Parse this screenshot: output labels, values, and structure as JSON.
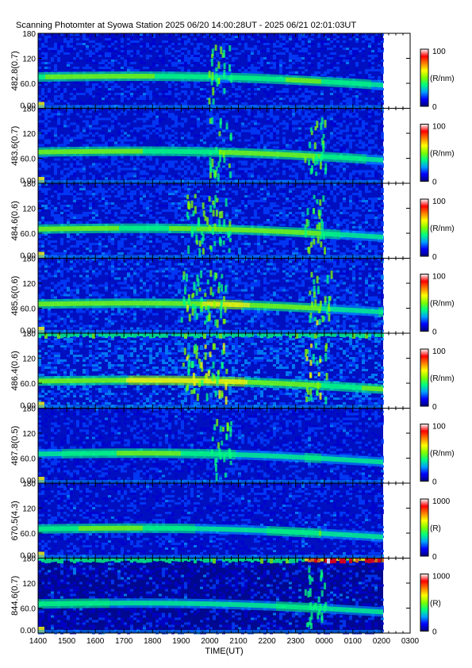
{
  "title": "Scanning Photomter at Syowa Station  2025 06/20 14:00:28UT - 2025 06/21 02:01:03UT",
  "chart_data": {
    "type": "heatmap",
    "xlabel": "TIME(UT)",
    "x_ticks": [
      "1400",
      "1500",
      "1600",
      "1700",
      "1800",
      "1900",
      "2000",
      "2100",
      "2200",
      "2300",
      "0000",
      "0100",
      "0200",
      "0300"
    ],
    "y_ticks": [
      "0.00",
      "60.0",
      "120",
      "180"
    ],
    "ylim": [
      0,
      180
    ],
    "colormap": [
      "#000080",
      "#0000ff",
      "#00a0ff",
      "#00ff80",
      "#80ff00",
      "#ffff00",
      "#ff8000",
      "#ff0000",
      "#ffffff"
    ],
    "panels": [
      {
        "ylabel": "482.8(0.7)",
        "unit": "(R/nm)",
        "cmin": "0",
        "cmax": "100",
        "intensity": 0.35,
        "band_center": 75,
        "bursts": [
          2020
        ],
        "bright_top": false
      },
      {
        "ylabel": "483.6(0.7)",
        "unit": "(R/nm)",
        "cmin": "0",
        "cmax": "100",
        "intensity": 0.45,
        "band_center": 75,
        "bursts": [
          2020,
          2340
        ],
        "bright_top": false
      },
      {
        "ylabel": "484.6(0.6)",
        "unit": "(R/nm)",
        "cmin": "0",
        "cmax": "100",
        "intensity": 0.5,
        "band_center": 70,
        "bursts": [
          1930,
          2020,
          2340
        ],
        "bright_top": false
      },
      {
        "ylabel": "485.6(0.6)",
        "unit": "(R/nm)",
        "cmin": "0",
        "cmax": "100",
        "intensity": 0.55,
        "band_center": 70,
        "bursts": [
          1920,
          2010,
          2350
        ],
        "bright_top": false
      },
      {
        "ylabel": "486.4(0.6)",
        "unit": "(R/nm)",
        "cmin": "0",
        "cmax": "100",
        "intensity": 0.7,
        "band_center": 65,
        "bursts": [
          1920,
          2010,
          2340
        ],
        "bright_top": true
      },
      {
        "ylabel": "487.8(0.5)",
        "unit": "(R/nm)",
        "cmin": "0",
        "cmax": "100",
        "intensity": 0.3,
        "band_center": 70,
        "bursts": [
          2020
        ],
        "bright_top": false
      },
      {
        "ylabel": "670.5(4.3)",
        "unit": "(R)",
        "cmin": "0",
        "cmax": "1000",
        "intensity": 0.3,
        "band_center": 70,
        "bursts": [],
        "bright_top": false
      },
      {
        "ylabel": "844.6(0.7)",
        "unit": "(R)",
        "cmin": "0",
        "cmax": "1000",
        "intensity": 0.2,
        "band_center": 70,
        "bursts": [
          2340
        ],
        "bright_top": true
      }
    ]
  }
}
